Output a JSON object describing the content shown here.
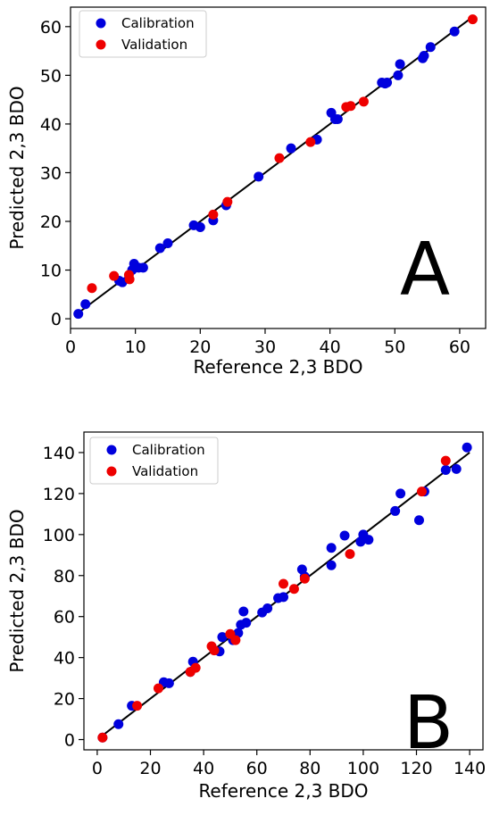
{
  "chart_data": [
    {
      "type": "scatter",
      "panel_label": "A",
      "xlabel": "Reference 2,3 BDO",
      "ylabel": "Predicted 2,3 BDO",
      "xlim": [
        0,
        64
      ],
      "ylim": [
        -2,
        64
      ],
      "xticks": [
        0,
        10,
        20,
        30,
        40,
        50,
        60
      ],
      "yticks": [
        0,
        10,
        20,
        30,
        40,
        50,
        60
      ],
      "grid": false,
      "legend_position": "top-left",
      "fit_line": {
        "x": [
          1,
          62
        ],
        "y": [
          1,
          62
        ],
        "color": "#000000"
      },
      "series": [
        {
          "name": "Calibration",
          "color": "#0000dd",
          "points": [
            [
              1.2,
              1.0
            ],
            [
              2.3,
              3.0
            ],
            [
              7.5,
              7.8
            ],
            [
              8.0,
              7.5
            ],
            [
              9.0,
              8.2
            ],
            [
              9.8,
              11.3
            ],
            [
              9.5,
              10.0
            ],
            [
              10.5,
              10.5
            ],
            [
              11.2,
              10.5
            ],
            [
              13.8,
              14.5
            ],
            [
              15.0,
              15.5
            ],
            [
              19.0,
              19.2
            ],
            [
              20.0,
              18.8
            ],
            [
              22.0,
              20.2
            ],
            [
              24.0,
              23.3
            ],
            [
              29.0,
              29.2
            ],
            [
              34.0,
              35.0
            ],
            [
              38.0,
              36.8
            ],
            [
              40.2,
              42.3
            ],
            [
              40.8,
              41.0
            ],
            [
              41.2,
              41.0
            ],
            [
              48.0,
              48.5
            ],
            [
              48.5,
              48.3
            ],
            [
              48.8,
              48.5
            ],
            [
              50.5,
              50.0
            ],
            [
              50.8,
              52.3
            ],
            [
              54.3,
              53.5
            ],
            [
              54.5,
              54.0
            ],
            [
              55.5,
              55.8
            ],
            [
              59.2,
              59.0
            ]
          ]
        },
        {
          "name": "Validation",
          "color": "#ee0000",
          "points": [
            [
              3.3,
              6.3
            ],
            [
              6.7,
              8.8
            ],
            [
              9.0,
              9.0
            ],
            [
              9.1,
              8.1
            ],
            [
              22.0,
              21.4
            ],
            [
              24.2,
              24.0
            ],
            [
              32.2,
              33.0
            ],
            [
              37.0,
              36.3
            ],
            [
              42.5,
              43.5
            ],
            [
              43.2,
              43.7
            ],
            [
              45.2,
              44.6
            ],
            [
              62.0,
              61.5
            ]
          ]
        }
      ]
    },
    {
      "type": "scatter",
      "panel_label": "B",
      "xlabel": "Reference 2,3 BDO",
      "ylabel": "Predicted 2,3 BDO",
      "xlim": [
        -5,
        145
      ],
      "ylim": [
        -5,
        150
      ],
      "xticks": [
        0,
        20,
        40,
        60,
        80,
        100,
        120,
        140
      ],
      "yticks": [
        0,
        20,
        40,
        60,
        80,
        100,
        120,
        140
      ],
      "grid": false,
      "legend_position": "top-left",
      "fit_line": {
        "x": [
          2,
          140
        ],
        "y": [
          2,
          140
        ],
        "color": "#000000"
      },
      "series": [
        {
          "name": "Calibration",
          "color": "#0000dd",
          "points": [
            [
              2,
              1
            ],
            [
              8,
              7.5
            ],
            [
              13,
              16.5
            ],
            [
              25,
              28
            ],
            [
              27,
              27.5
            ],
            [
              35,
              33
            ],
            [
              36,
              38
            ],
            [
              46,
              43
            ],
            [
              47,
              50
            ],
            [
              51,
              48.5
            ],
            [
              53,
              52
            ],
            [
              54,
              56
            ],
            [
              56,
              57
            ],
            [
              55,
              62.5
            ],
            [
              62,
              62
            ],
            [
              64,
              64
            ],
            [
              68,
              69
            ],
            [
              70,
              69.5
            ],
            [
              77,
              83
            ],
            [
              78,
              79.5
            ],
            [
              88,
              85
            ],
            [
              88,
              93.5
            ],
            [
              93,
              99.5
            ],
            [
              99,
              96.5
            ],
            [
              100,
              100
            ],
            [
              102,
              97.5
            ],
            [
              112,
              111.5
            ],
            [
              114,
              120
            ],
            [
              121,
              107
            ],
            [
              123,
              121
            ],
            [
              131,
              131.5
            ],
            [
              135,
              132
            ],
            [
              139,
              142.5
            ]
          ]
        },
        {
          "name": "Validation",
          "color": "#ee0000",
          "points": [
            [
              2,
              1
            ],
            [
              15,
              16.5
            ],
            [
              23,
              25
            ],
            [
              35,
              33
            ],
            [
              37,
              35
            ],
            [
              43,
              45.5
            ],
            [
              44,
              43.5
            ],
            [
              50,
              51.5
            ],
            [
              52,
              48.5
            ],
            [
              70,
              76
            ],
            [
              74,
              73.5
            ],
            [
              78,
              78.5
            ],
            [
              95,
              90.5
            ],
            [
              122,
              121
            ],
            [
              131,
              136
            ]
          ]
        }
      ]
    }
  ]
}
